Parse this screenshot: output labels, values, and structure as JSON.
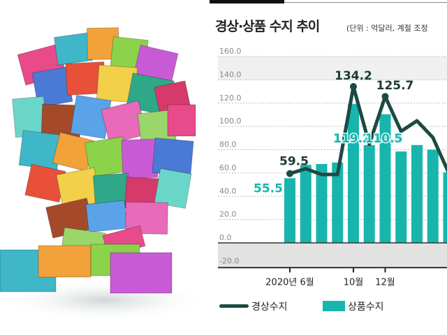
{
  "chart_data": {
    "type": "bar+line",
    "title": "경상·상품 수지 추이",
    "subtitle": "(단위 : 억달러, 계절 조정",
    "ylim": [
      -20,
      160
    ],
    "yticks": [
      "160.0",
      "140.0",
      "120.0",
      "100.0",
      "80.0",
      "60.0",
      "40.0",
      "20.0",
      "0.0",
      "-20.0"
    ],
    "ytick_values": [
      160,
      140,
      120,
      100,
      80,
      60,
      40,
      20,
      0,
      -20
    ],
    "x_tick_labels": [
      {
        "index": 0,
        "label": "2020년 6월"
      },
      {
        "index": 4,
        "label": "10월"
      },
      {
        "index": 6,
        "label": "12월"
      }
    ],
    "categories": [
      "2020-06",
      "2020-07",
      "2020-08",
      "2020-09",
      "2020-10",
      "2020-11",
      "2020-12",
      "2021-01",
      "2021-02",
      "2021-03",
      "2021-04"
    ],
    "series": [
      {
        "name": "경상수지",
        "type": "line",
        "color": "#1d4a43",
        "values": [
          59.5,
          63.7,
          58.7,
          58.7,
          134.2,
          84.7,
          125.7,
          95.8,
          104.8,
          90.5,
          60
        ],
        "data_labels": {
          "0": "59.5",
          "4": "134.2",
          "6": "125.7"
        }
      },
      {
        "name": "상품수지",
        "type": "bar",
        "color": "#18b5ad",
        "values": [
          55.5,
          67,
          67.7,
          69,
          119.2,
          84,
          110.5,
          78.5,
          84,
          80,
          60.5
        ],
        "data_labels": {
          "0": "55.5",
          "4": "119.2",
          "6": "110.5"
        }
      }
    ],
    "legend": {
      "placement": "bottom",
      "items": [
        "경상수지",
        "상품수지"
      ]
    },
    "grid": true
  }
}
